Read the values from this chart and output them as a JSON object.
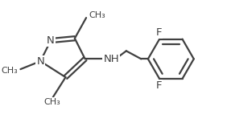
{
  "bg_color": "#ffffff",
  "line_color": "#404040",
  "line_width": 1.6,
  "font_size": 9.0,
  "figsize": [
    2.82,
    1.58
  ],
  "dpi": 100,
  "xlim": [
    0,
    9.5
  ],
  "ylim": [
    0,
    5.3
  ]
}
